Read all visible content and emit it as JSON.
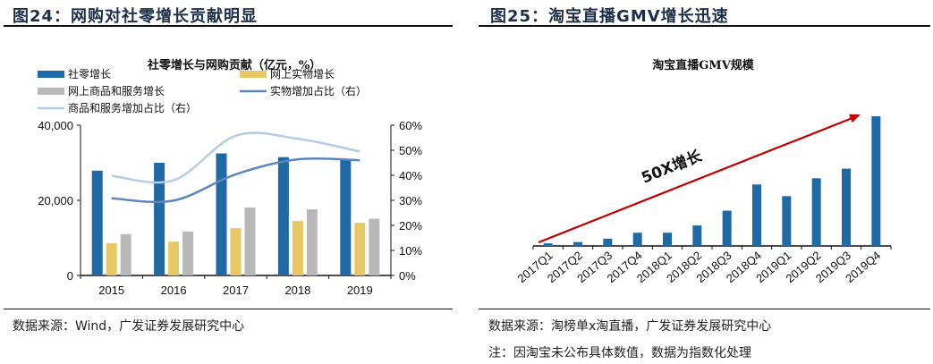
{
  "left": {
    "figure_title": "图24：网购对社零增长贡献明显",
    "source": "数据来源：Wind，广发证券发展研究中心"
  },
  "right": {
    "figure_title": "图25：淘宝直播GMV增长迅速",
    "source": "数据来源：淘榜单x淘直播，广发证券发展研究中心",
    "note": "注：因淘宝未公布具体数值，数据为指数化处理"
  },
  "colors": {
    "blue_bar": "#1f6aa5",
    "yellow_bar": "#e6c865",
    "gray_bar": "#b8b8b8",
    "dark_line": "#5b86c0",
    "light_line": "#b4cbe6",
    "arrow": "#c00000",
    "title": "#1f2f4a"
  },
  "chart_data": [
    {
      "type": "bar",
      "title": "社零增长与网购贡献（亿元，%）",
      "categories": [
        "2015",
        "2016",
        "2017",
        "2018",
        "2019"
      ],
      "series": [
        {
          "name": "社零增长",
          "kind": "bar",
          "axis": "left",
          "color_key": "blue_bar",
          "values": [
            27900,
            30000,
            32500,
            31500,
            30700
          ]
        },
        {
          "name": "网上实物增长",
          "kind": "bar",
          "axis": "left",
          "color_key": "yellow_bar",
          "values": [
            8600,
            9000,
            12600,
            14500,
            14000
          ]
        },
        {
          "name": "网上商品和服务增长",
          "kind": "bar",
          "axis": "left",
          "color_key": "gray_bar",
          "values": [
            11000,
            11700,
            18100,
            17600,
            15100
          ]
        },
        {
          "name": "实物增加占比（右）",
          "kind": "line",
          "axis": "right",
          "color_key": "dark_line",
          "values": [
            30.8,
            29.9,
            40.4,
            46.4,
            46.0
          ]
        },
        {
          "name": "商品和服务增加占比（右）",
          "kind": "line",
          "axis": "right",
          "color_key": "light_line",
          "values": [
            39.8,
            38.0,
            55.8,
            54.6,
            49.5
          ]
        }
      ],
      "y_left": {
        "ylim": [
          0,
          40000
        ],
        "ticks": [
          "0",
          "20,000",
          "40,000"
        ],
        "tick_values": [
          0,
          20000,
          40000
        ]
      },
      "y_right": {
        "ylim": [
          0,
          60
        ],
        "ticks": [
          "0%",
          "10%",
          "20%",
          "30%",
          "40%",
          "50%",
          "60%"
        ],
        "tick_values": [
          0,
          10,
          20,
          30,
          40,
          50,
          60
        ]
      },
      "legend_position": "top",
      "grid": false
    },
    {
      "type": "bar",
      "title": "淘宝直播GMV规模",
      "categories": [
        "2017Q1",
        "2017Q2",
        "2017Q3",
        "2017Q4",
        "2018Q1",
        "2018Q2",
        "2018Q3",
        "2018Q4",
        "2019Q1",
        "2019Q2",
        "2019Q3",
        "2019Q4"
      ],
      "series": [
        {
          "name": "淘宝直播GMV(指数)",
          "color_key": "blue_bar",
          "values": [
            1,
            1.5,
            2.8,
            5.1,
            5.1,
            7.9,
            13.6,
            23.7,
            19.2,
            26.1,
            29.8,
            50
          ]
        }
      ],
      "ylim": [
        0,
        50
      ],
      "annotation": "50X增长",
      "y_axis_visible": false,
      "grid": false
    }
  ]
}
